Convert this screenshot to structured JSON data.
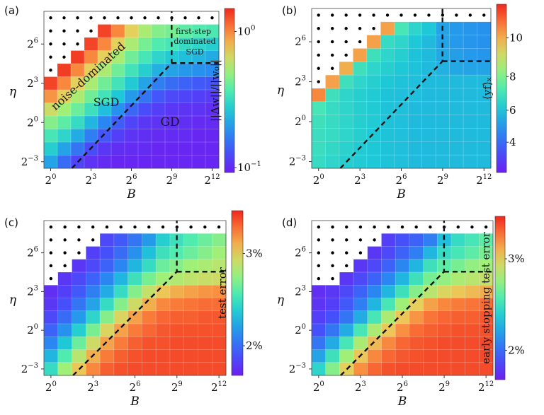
{
  "chart_data": [
    {
      "panel": "(a)",
      "type": "heatmap",
      "xlabel": "B",
      "ylabel": "η",
      "x_ticks": [
        {
          "base": "2",
          "exp": "0"
        },
        {
          "base": "2",
          "exp": "3"
        },
        {
          "base": "2",
          "exp": "6"
        },
        {
          "base": "2",
          "exp": "9"
        },
        {
          "base": "2",
          "exp": "12"
        }
      ],
      "y_ticks": [
        {
          "base": "2",
          "exp": "−3"
        },
        {
          "base": "2",
          "exp": "0"
        },
        {
          "base": "2",
          "exp": "3"
        },
        {
          "base": "2",
          "exp": "6"
        }
      ],
      "colorbar": {
        "label": "||Δw||/||w₀||",
        "scale": "log",
        "colormap": "rainbow",
        "ticks": [
          {
            "base": "10",
            "exp": "0"
          },
          {
            "base": "10",
            "exp": "−1"
          }
        ]
      },
      "annotations": [
        "noise-dominated",
        "SGD",
        "first-step",
        "dominated",
        "SGD",
        "GD"
      ],
      "dots": true,
      "grid": [
        [
          null,
          null,
          null,
          null,
          null,
          null,
          null,
          null,
          null,
          null,
          null,
          null,
          null
        ],
        [
          null,
          null,
          null,
          null,
          0.96,
          0.86,
          0.74,
          0.64,
          0.58,
          0.56,
          0.52,
          0.5,
          0.49
        ],
        [
          null,
          null,
          null,
          0.96,
          0.86,
          0.74,
          0.64,
          0.56,
          0.5,
          0.48,
          0.44,
          0.42,
          0.4
        ],
        [
          null,
          null,
          0.97,
          0.86,
          0.74,
          0.64,
          0.55,
          0.48,
          0.42,
          0.39,
          0.36,
          0.34,
          0.32
        ],
        [
          null,
          0.97,
          0.86,
          0.74,
          0.64,
          0.55,
          0.47,
          0.4,
          0.33,
          0.3,
          0.28,
          0.26,
          0.25
        ],
        [
          0.96,
          0.86,
          0.74,
          0.64,
          0.55,
          0.47,
          0.39,
          0.3,
          0.22,
          0.18,
          0.16,
          0.14,
          0.13
        ],
        [
          0.84,
          0.74,
          0.64,
          0.55,
          0.47,
          0.38,
          0.28,
          0.2,
          0.13,
          0.1,
          0.09,
          0.08,
          0.07
        ],
        [
          0.7,
          0.62,
          0.54,
          0.46,
          0.36,
          0.26,
          0.17,
          0.11,
          0.08,
          0.06,
          0.05,
          0.05,
          0.04
        ],
        [
          0.58,
          0.52,
          0.44,
          0.34,
          0.24,
          0.15,
          0.09,
          0.06,
          0.05,
          0.04,
          0.04,
          0.03,
          0.03
        ],
        [
          0.48,
          0.42,
          0.32,
          0.22,
          0.13,
          0.08,
          0.05,
          0.04,
          0.03,
          0.03,
          0.03,
          0.02,
          0.02
        ],
        [
          0.4,
          0.3,
          0.2,
          0.11,
          0.06,
          0.04,
          0.03,
          0.03,
          0.02,
          0.02,
          0.02,
          0.02,
          0.02
        ],
        [
          0.3,
          0.18,
          0.09,
          0.05,
          0.03,
          0.02,
          0.02,
          0.02,
          0.02,
          0.02,
          0.02,
          0.02,
          0.02
        ]
      ]
    },
    {
      "panel": "(b)",
      "type": "heatmap",
      "xlabel": "B",
      "ylabel": "η",
      "x_ticks": [
        {
          "base": "2",
          "exp": "0"
        },
        {
          "base": "2",
          "exp": "3"
        },
        {
          "base": "2",
          "exp": "6"
        },
        {
          "base": "2",
          "exp": "9"
        },
        {
          "base": "2",
          "exp": "12"
        }
      ],
      "y_ticks": [
        {
          "base": "2",
          "exp": "−3"
        },
        {
          "base": "2",
          "exp": "0"
        },
        {
          "base": "2",
          "exp": "3"
        },
        {
          "base": "2",
          "exp": "6"
        }
      ],
      "colorbar": {
        "label": "⟨yf⟩ₓ",
        "scale": "linear",
        "colormap": "rainbow",
        "range": [
          2.4,
          12.6
        ],
        "ticks": [
          "10",
          "8",
          "6",
          "4"
        ]
      },
      "dots": true,
      "grid": [
        [
          null,
          null,
          null,
          null,
          null,
          null,
          null,
          null,
          null,
          null,
          null,
          null,
          null
        ],
        [
          null,
          null,
          null,
          null,
          null,
          0.82,
          0.48,
          0.42,
          0.38,
          0.3,
          0.28,
          0.27,
          0.26
        ],
        [
          null,
          null,
          null,
          null,
          0.82,
          0.44,
          0.42,
          0.38,
          0.35,
          0.3,
          0.28,
          0.27,
          0.26
        ],
        [
          null,
          null,
          null,
          0.82,
          0.46,
          0.42,
          0.4,
          0.37,
          0.35,
          0.31,
          0.29,
          0.28,
          0.27
        ],
        [
          null,
          null,
          0.8,
          0.46,
          0.42,
          0.4,
          0.38,
          0.37,
          0.35,
          0.33,
          0.31,
          0.3,
          0.3
        ],
        [
          null,
          0.82,
          0.46,
          0.42,
          0.4,
          0.38,
          0.37,
          0.36,
          0.35,
          0.35,
          0.35,
          0.35,
          0.35
        ],
        [
          0.86,
          0.46,
          0.42,
          0.4,
          0.39,
          0.37,
          0.36,
          0.36,
          0.35,
          0.35,
          0.35,
          0.35,
          0.35
        ],
        [
          0.48,
          0.44,
          0.42,
          0.4,
          0.39,
          0.37,
          0.36,
          0.35,
          0.35,
          0.35,
          0.35,
          0.35,
          0.35
        ],
        [
          0.46,
          0.44,
          0.42,
          0.4,
          0.39,
          0.37,
          0.36,
          0.35,
          0.35,
          0.35,
          0.35,
          0.35,
          0.35
        ],
        [
          0.45,
          0.44,
          0.42,
          0.4,
          0.38,
          0.37,
          0.36,
          0.35,
          0.35,
          0.35,
          0.35,
          0.35,
          0.35
        ],
        [
          0.45,
          0.43,
          0.41,
          0.39,
          0.38,
          0.37,
          0.36,
          0.35,
          0.35,
          0.35,
          0.35,
          0.35,
          0.35
        ],
        [
          0.44,
          0.42,
          0.4,
          0.39,
          0.38,
          0.37,
          0.36,
          0.35,
          0.35,
          0.35,
          0.35,
          0.35,
          0.35
        ]
      ]
    },
    {
      "panel": "(c)",
      "type": "heatmap",
      "xlabel": "B",
      "ylabel": "η",
      "x_ticks": [
        {
          "base": "2",
          "exp": "0"
        },
        {
          "base": "2",
          "exp": "3"
        },
        {
          "base": "2",
          "exp": "6"
        },
        {
          "base": "2",
          "exp": "9"
        },
        {
          "base": "2",
          "exp": "12"
        }
      ],
      "y_ticks": [
        {
          "base": "2",
          "exp": "−3"
        },
        {
          "base": "2",
          "exp": "0"
        },
        {
          "base": "2",
          "exp": "3"
        },
        {
          "base": "2",
          "exp": "6"
        }
      ],
      "colorbar": {
        "label": "test error",
        "scale": "log",
        "colormap": "rainbow",
        "ticks": [
          "3%",
          "2%"
        ]
      },
      "dots": true,
      "grid": [
        [
          null,
          null,
          null,
          null,
          null,
          null,
          null,
          null,
          null,
          null,
          null,
          null,
          null
        ],
        [
          null,
          null,
          null,
          null,
          0.1,
          0.14,
          0.2,
          0.28,
          0.4,
          0.46,
          0.5,
          0.54,
          0.58
        ],
        [
          null,
          null,
          null,
          0.08,
          0.12,
          0.18,
          0.26,
          0.36,
          0.46,
          0.5,
          0.54,
          0.58,
          0.62
        ],
        [
          null,
          null,
          0.06,
          0.1,
          0.16,
          0.24,
          0.34,
          0.44,
          0.54,
          0.58,
          0.62,
          0.64,
          0.66
        ],
        [
          null,
          0.06,
          0.1,
          0.16,
          0.24,
          0.34,
          0.46,
          0.56,
          0.62,
          0.65,
          0.67,
          0.69,
          0.7
        ],
        [
          0.04,
          0.08,
          0.14,
          0.22,
          0.32,
          0.44,
          0.58,
          0.68,
          0.76,
          0.8,
          0.82,
          0.84,
          0.85
        ],
        [
          0.06,
          0.12,
          0.2,
          0.3,
          0.44,
          0.58,
          0.7,
          0.8,
          0.86,
          0.88,
          0.89,
          0.9,
          0.9
        ],
        [
          0.1,
          0.18,
          0.28,
          0.42,
          0.58,
          0.72,
          0.82,
          0.88,
          0.91,
          0.92,
          0.92,
          0.93,
          0.93
        ],
        [
          0.16,
          0.26,
          0.4,
          0.56,
          0.72,
          0.82,
          0.88,
          0.91,
          0.93,
          0.94,
          0.94,
          0.94,
          0.94
        ],
        [
          0.24,
          0.38,
          0.54,
          0.7,
          0.82,
          0.88,
          0.92,
          0.94,
          0.94,
          0.95,
          0.95,
          0.95,
          0.95
        ],
        [
          0.34,
          0.5,
          0.66,
          0.8,
          0.88,
          0.92,
          0.94,
          0.95,
          0.95,
          0.95,
          0.95,
          0.95,
          0.95
        ],
        [
          0.44,
          0.62,
          0.76,
          0.86,
          0.92,
          0.94,
          0.95,
          0.95,
          0.95,
          0.95,
          0.95,
          0.95,
          0.95
        ]
      ]
    },
    {
      "panel": "(d)",
      "type": "heatmap",
      "xlabel": "B",
      "ylabel": "η",
      "x_ticks": [
        {
          "base": "2",
          "exp": "0"
        },
        {
          "base": "2",
          "exp": "3"
        },
        {
          "base": "2",
          "exp": "6"
        },
        {
          "base": "2",
          "exp": "9"
        },
        {
          "base": "2",
          "exp": "12"
        }
      ],
      "y_ticks": [
        {
          "base": "2",
          "exp": "−3"
        },
        {
          "base": "2",
          "exp": "0"
        },
        {
          "base": "2",
          "exp": "3"
        },
        {
          "base": "2",
          "exp": "6"
        }
      ],
      "colorbar": {
        "label": "early stopping test error",
        "scale": "log",
        "colormap": "rainbow",
        "ticks": [
          "3%",
          "2%"
        ]
      },
      "dots": true,
      "grid": [
        [
          null,
          null,
          null,
          null,
          null,
          null,
          null,
          null,
          null,
          null,
          null,
          null,
          null
        ],
        [
          null,
          null,
          null,
          null,
          null,
          0.08,
          0.12,
          0.16,
          0.22,
          0.36,
          0.44,
          0.48,
          0.52
        ],
        [
          null,
          null,
          null,
          null,
          0.06,
          0.1,
          0.16,
          0.22,
          0.34,
          0.44,
          0.48,
          0.52,
          0.56
        ],
        [
          null,
          null,
          null,
          0.06,
          0.1,
          0.16,
          0.24,
          0.34,
          0.46,
          0.52,
          0.56,
          0.6,
          0.62
        ],
        [
          null,
          null,
          0.06,
          0.1,
          0.16,
          0.24,
          0.34,
          0.46,
          0.56,
          0.6,
          0.64,
          0.66,
          0.68
        ],
        [
          0.04,
          0.06,
          0.1,
          0.16,
          0.24,
          0.34,
          0.46,
          0.58,
          0.66,
          0.72,
          0.76,
          0.78,
          0.8
        ],
        [
          0.05,
          0.08,
          0.14,
          0.22,
          0.34,
          0.48,
          0.62,
          0.74,
          0.82,
          0.86,
          0.88,
          0.89,
          0.9
        ],
        [
          0.08,
          0.12,
          0.2,
          0.32,
          0.48,
          0.64,
          0.76,
          0.84,
          0.89,
          0.91,
          0.92,
          0.92,
          0.93
        ],
        [
          0.12,
          0.2,
          0.32,
          0.48,
          0.64,
          0.76,
          0.85,
          0.9,
          0.92,
          0.93,
          0.94,
          0.94,
          0.94
        ],
        [
          0.2,
          0.32,
          0.48,
          0.64,
          0.78,
          0.86,
          0.91,
          0.93,
          0.94,
          0.95,
          0.95,
          0.95,
          0.95
        ],
        [
          0.3,
          0.46,
          0.62,
          0.76,
          0.86,
          0.91,
          0.93,
          0.94,
          0.95,
          0.95,
          0.95,
          0.95,
          0.95
        ],
        [
          0.42,
          0.58,
          0.74,
          0.85,
          0.91,
          0.94,
          0.95,
          0.95,
          0.95,
          0.95,
          0.95,
          0.95,
          0.95
        ]
      ]
    }
  ]
}
